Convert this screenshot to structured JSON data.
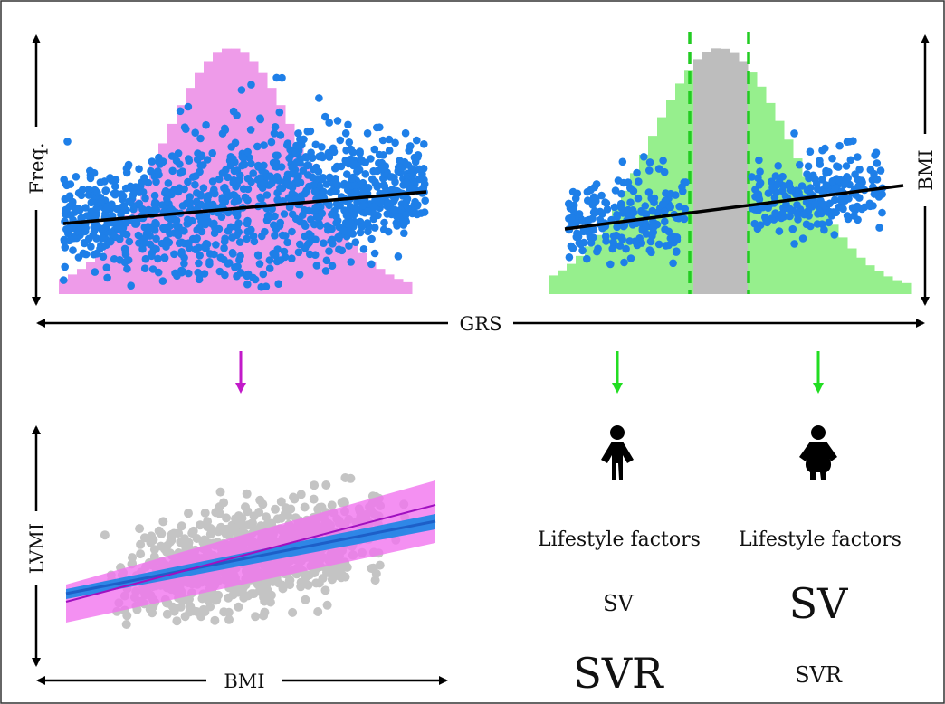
{
  "labels": {
    "freq": "Freq.",
    "bmi_right": "BMI",
    "grs": "GRS",
    "lvmi": "LVMI",
    "bmi_bottom": "BMI",
    "lifestyle_lean": "Lifestyle factors",
    "lifestyle_obese": "Lifestyle factors",
    "sv_lean": "SV",
    "sv_obese": "SV",
    "svr_lean": "SVR",
    "svr_obese": "SVR"
  },
  "colors": {
    "pink_hist": "#ee9be9",
    "green_hist": "#96ef8d",
    "gray_hist": "#bdbdbd",
    "scatter_blue": "#1e7fe8",
    "scatter_gray": "#c4c4c4",
    "regression_black": "#000000",
    "purple_arrow": "#c21ac9",
    "green_arrow": "#22dd22",
    "ci_pink": "#f174ef",
    "fit_blue": "#1a86e6",
    "fit_purple": "#a010c0"
  },
  "icons": {
    "lean_person": "person-lean-icon",
    "obese_person": "person-obese-icon"
  }
}
